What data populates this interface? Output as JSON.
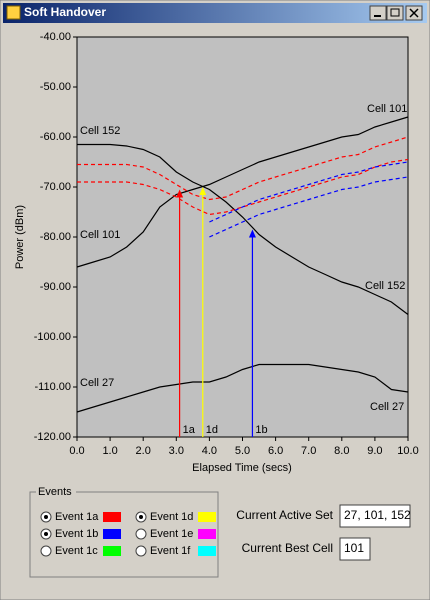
{
  "window": {
    "title": "Soft Handover"
  },
  "chart_data": {
    "type": "line",
    "x_label": "Elapsed Time (secs)",
    "y_label": "Power (dBm)",
    "x": [
      0,
      0.5,
      1,
      1.5,
      2,
      2.5,
      3,
      3.5,
      4,
      4.5,
      5,
      5.5,
      6,
      6.5,
      7,
      7.5,
      8,
      8.5,
      9,
      9.5,
      10
    ],
    "xlim": [
      0,
      10
    ],
    "xticks": [
      {
        "value": 0,
        "label": "0.0"
      },
      {
        "value": 1,
        "label": "1.0"
      },
      {
        "value": 2,
        "label": "2.0"
      },
      {
        "value": 3,
        "label": "3.0"
      },
      {
        "value": 4,
        "label": "4.0"
      },
      {
        "value": 5,
        "label": "5.0"
      },
      {
        "value": 6,
        "label": "6.0"
      },
      {
        "value": 7,
        "label": "7.0"
      },
      {
        "value": 8,
        "label": "8.0"
      },
      {
        "value": 9,
        "label": "9.0"
      },
      {
        "value": 10,
        "label": "10.0"
      }
    ],
    "ylim": [
      -120,
      -40
    ],
    "yticks": [
      {
        "value": -120,
        "label": "-120.00"
      },
      {
        "value": -110,
        "label": "-110.00"
      },
      {
        "value": -100,
        "label": "-100.00"
      },
      {
        "value": -90,
        "label": "-90.00"
      },
      {
        "value": -80,
        "label": "-80.00"
      },
      {
        "value": -70,
        "label": "-70.00"
      },
      {
        "value": -60,
        "label": "-60.00"
      },
      {
        "value": -50,
        "label": "-50.00"
      },
      {
        "value": -40,
        "label": "-40.00"
      }
    ],
    "series": [
      {
        "name": "Cell 152",
        "color": "#000000",
        "values": [
          -61.5,
          -61.5,
          -61.5,
          -61.8,
          -62.5,
          -64,
          -67,
          -69,
          -70.5,
          -73,
          -76,
          -79.5,
          -82,
          -84,
          -86,
          -87.5,
          -89,
          -90,
          -91.5,
          -93,
          -95.5
        ]
      },
      {
        "name": "Cell 101",
        "color": "#000000",
        "values": [
          -86,
          -85,
          -84,
          -82,
          -79,
          -74,
          -71.5,
          -70.5,
          -69.5,
          -68,
          -66.5,
          -65,
          -64,
          -63,
          -62,
          -61,
          -60,
          -59.5,
          -58,
          -57,
          -56
        ]
      },
      {
        "name": "Cell 27",
        "color": "#000000",
        "values": [
          -115,
          -114,
          -113,
          -112,
          -111,
          -110,
          -109.5,
          -109,
          -109,
          -108,
          -106.5,
          -105.5,
          -105.5,
          -105.5,
          -105.5,
          -106,
          -106.5,
          -107,
          -108,
          -110.5,
          -111
        ]
      },
      {
        "color": "#ff0000",
        "dashed": true,
        "values": [
          -65.5,
          -65.5,
          -65.5,
          -65.5,
          -66,
          -67.5,
          -69.5,
          -71.5,
          -72.5,
          -72,
          -70.5,
          -69,
          -68,
          -67,
          -66,
          -65,
          -64,
          -63.5,
          -62,
          -61,
          -60
        ]
      },
      {
        "color": "#ff0000",
        "dashed": true,
        "values": [
          -69,
          -69,
          -69,
          -69,
          -69.5,
          -70.5,
          -72,
          -74,
          -75.5,
          -75,
          -74,
          -73,
          -72,
          -71,
          -70,
          -69,
          -68,
          -67.5,
          -66,
          -65,
          -64.5
        ]
      },
      {
        "color": "#0000ff",
        "dashed": true,
        "values": [
          null,
          null,
          null,
          null,
          null,
          null,
          null,
          null,
          -77,
          -75.5,
          -74,
          -72.5,
          -71.5,
          -70.5,
          -69.5,
          -68.5,
          -67.5,
          -67,
          -66,
          -65.5,
          -65
        ]
      },
      {
        "color": "#0000ff",
        "dashed": true,
        "values": [
          null,
          null,
          null,
          null,
          null,
          null,
          null,
          null,
          -80,
          -78.5,
          -77,
          -75.5,
          -74.5,
          -73.5,
          -72.5,
          -71.5,
          -70.5,
          -70,
          -69,
          -68.5,
          -68
        ]
      }
    ],
    "markers": [
      {
        "label": "1a",
        "x": 3.1,
        "y": -70.5,
        "color": "#ff0000"
      },
      {
        "label": "1d",
        "x": 3.8,
        "y": -70,
        "color": "#ffff00"
      },
      {
        "label": "1b",
        "x": 5.3,
        "y": -78.5,
        "color": "#0000ff"
      }
    ]
  },
  "events": {
    "title": "Events",
    "items": [
      {
        "label": "Event 1a",
        "checked": true,
        "color": "#ff0000"
      },
      {
        "label": "Event 1b",
        "checked": true,
        "color": "#0000ff"
      },
      {
        "label": "Event 1c",
        "checked": false,
        "color": "#00ff00"
      },
      {
        "label": "Event 1d",
        "checked": true,
        "color": "#ffff00"
      },
      {
        "label": "Event 1e",
        "checked": false,
        "color": "#ff00ff"
      },
      {
        "label": "Event 1f",
        "checked": false,
        "color": "#00ffff"
      }
    ]
  },
  "status": {
    "active_set_label": "Current Active Set",
    "active_set": "27, 101, 152",
    "best_cell_label": "Current Best Cell",
    "best_cell": "101"
  }
}
